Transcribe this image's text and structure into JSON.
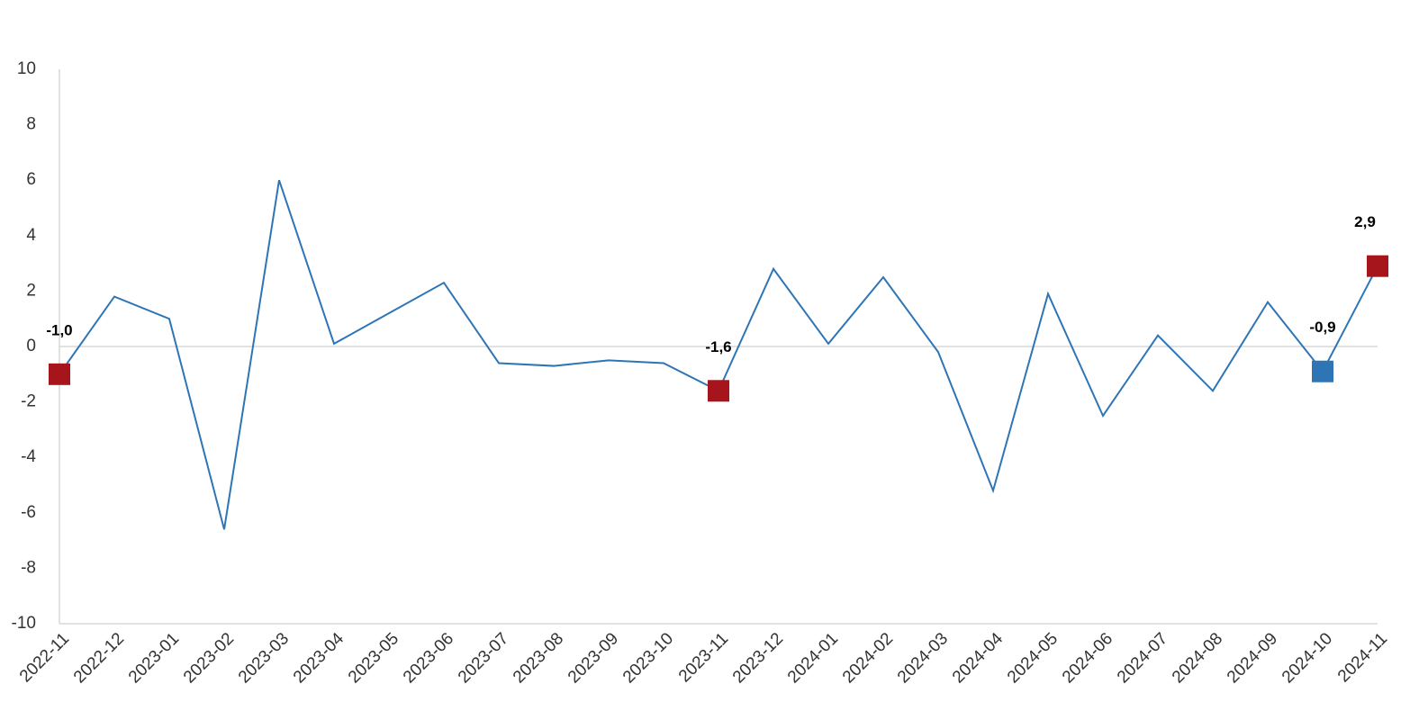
{
  "chart_data": {
    "type": "line",
    "categories": [
      "2022-11",
      "2022-12",
      "2023-01",
      "2023-02",
      "2023-03",
      "2023-04",
      "2023-05",
      "2023-06",
      "2023-07",
      "2023-08",
      "2023-09",
      "2023-10",
      "2023-11",
      "2023-12",
      "2024-01",
      "2024-02",
      "2024-03",
      "2024-04",
      "2024-05",
      "2024-06",
      "2024-07",
      "2024-08",
      "2024-09",
      "2024-10",
      "2024-11"
    ],
    "series": [
      {
        "color": "#2e75b6",
        "values": [
          -1.0,
          1.8,
          1.0,
          -6.6,
          6.0,
          0.1,
          1.2,
          2.3,
          -0.6,
          -0.7,
          -0.5,
          -0.6,
          -1.6,
          2.8,
          0.1,
          2.5,
          -0.2,
          -5.2,
          1.9,
          -2.5,
          0.4,
          -1.6,
          1.6,
          -0.9,
          2.9
        ],
        "value_labels": [
          "-1,0",
          null,
          null,
          null,
          null,
          null,
          null,
          null,
          null,
          null,
          null,
          null,
          "-1,6",
          null,
          null,
          null,
          null,
          null,
          null,
          null,
          null,
          null,
          null,
          "-0,9",
          "2,9"
        ],
        "marker_colors": [
          "#a6141c",
          null,
          null,
          null,
          null,
          null,
          null,
          null,
          null,
          null,
          null,
          null,
          "#a6141c",
          null,
          null,
          null,
          null,
          null,
          null,
          null,
          null,
          null,
          null,
          "#2e75b6",
          "#a6141c"
        ]
      }
    ],
    "ylim": [
      -10,
      10
    ],
    "yticks": [
      -10,
      -8,
      -6,
      -4,
      -2,
      0,
      2,
      4,
      6,
      8,
      10
    ]
  }
}
